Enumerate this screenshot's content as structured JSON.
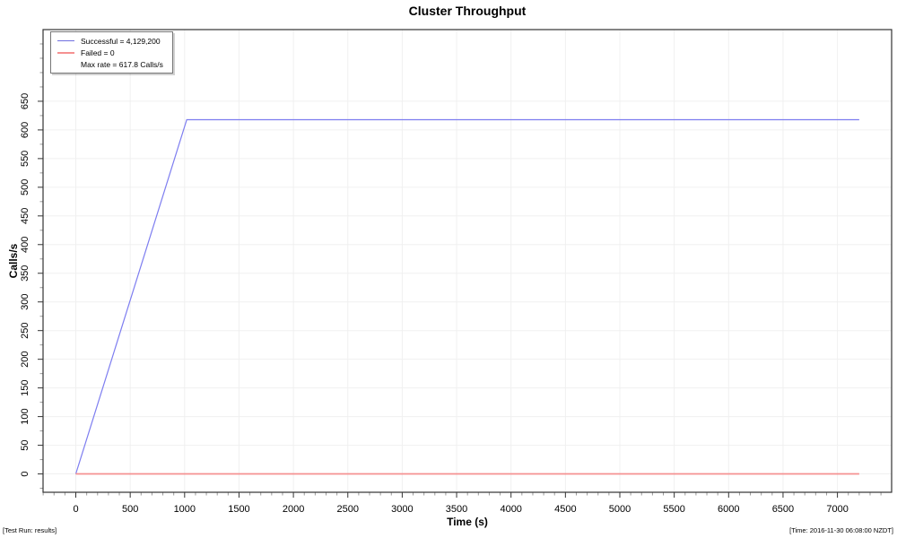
{
  "page": {
    "title": "Cluster Throughput",
    "footer_left": "[Test Run: results]",
    "footer_right": "[Time: 2016-11-30 06:08:00 NZDT]"
  },
  "legend": {
    "items": [
      {
        "label": "Successful = 4,129,200",
        "color": "#6f6fe0",
        "line_width": 1.2
      },
      {
        "label": "Failed = 0",
        "color": "#f59191",
        "line_width": 2.6
      },
      {
        "label": "Max rate = 617.8 Calls/s",
        "color": null,
        "line_width": 0
      }
    ]
  },
  "chart_data": {
    "type": "line",
    "title": "Cluster Throughput",
    "xlabel": "Time (s)",
    "ylabel": "Calls/s",
    "xlim": [
      -301,
      7498
    ],
    "ylim": [
      -32,
      775
    ],
    "x_ticks": [
      0,
      500,
      1000,
      1500,
      2000,
      2500,
      3000,
      3500,
      4000,
      4500,
      5000,
      5500,
      6000,
      6500,
      7000
    ],
    "y_ticks": [
      0,
      50,
      100,
      150,
      200,
      250,
      300,
      350,
      400,
      450,
      500,
      550,
      600,
      650
    ],
    "x_minor_step": 100,
    "x_minor_range": [
      -300,
      7400
    ],
    "y_minor_step": 25,
    "y_minor_range": [
      -25,
      750
    ],
    "grid": true,
    "grid_color": "#f0f0f0",
    "box_color": "#333333",
    "major_tick_color": "#333333",
    "minor_tick_color": "#999999",
    "series": [
      {
        "name": "Successful",
        "color": "#7d7df0",
        "width": 1.2,
        "points": [
          [
            0,
            0
          ],
          [
            1020,
            617.8
          ],
          [
            7200,
            617.8
          ]
        ]
      },
      {
        "name": "Failed",
        "color": "#f59191",
        "width": 1.7,
        "points": [
          [
            0,
            0
          ],
          [
            7200,
            0
          ]
        ]
      }
    ],
    "stats": {
      "successful_total": "4,129,200",
      "failed_total": 0,
      "max_rate_calls_per_s": 617.8
    }
  }
}
